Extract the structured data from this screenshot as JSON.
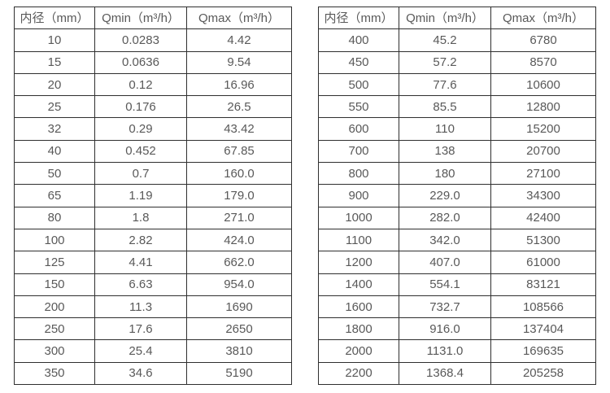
{
  "colors": {
    "background": "#ffffff",
    "border": "#2f2f2f",
    "text": "#595959"
  },
  "tables": [
    {
      "name": "flow-rate-table-small-diameters",
      "headers": [
        "内径（mm）",
        "Qmin（m³/h）",
        "Qmax（m³/h）"
      ],
      "rows": [
        [
          "10",
          "0.0283",
          "4.42"
        ],
        [
          "15",
          "0.0636",
          "9.54"
        ],
        [
          "20",
          "0.12",
          "16.96"
        ],
        [
          "25",
          "0.176",
          "26.5"
        ],
        [
          "32",
          "0.29",
          "43.42"
        ],
        [
          "40",
          "0.452",
          "67.85"
        ],
        [
          "50",
          "0.7",
          "160.0"
        ],
        [
          "65",
          "1.19",
          "179.0"
        ],
        [
          "80",
          "1.8",
          "271.0"
        ],
        [
          "100",
          "2.82",
          "424.0"
        ],
        [
          "125",
          "4.41",
          "662.0"
        ],
        [
          "150",
          "6.63",
          "954.0"
        ],
        [
          "200",
          "11.3",
          "1690"
        ],
        [
          "250",
          "17.6",
          "2650"
        ],
        [
          "300",
          "25.4",
          "3810"
        ],
        [
          "350",
          "34.6",
          "5190"
        ]
      ]
    },
    {
      "name": "flow-rate-table-large-diameters",
      "headers": [
        "内径（mm）",
        "Qmin（m³/h）",
        "Qmax（m³/h）"
      ],
      "rows": [
        [
          "400",
          "45.2",
          "6780"
        ],
        [
          "450",
          "57.2",
          "8570"
        ],
        [
          "500",
          "77.6",
          "10600"
        ],
        [
          "550",
          "85.5",
          "12800"
        ],
        [
          "600",
          "110",
          "15200"
        ],
        [
          "700",
          "138",
          "20700"
        ],
        [
          "800",
          "180",
          "27100"
        ],
        [
          "900",
          "229.0",
          "34300"
        ],
        [
          "1000",
          "282.0",
          "42400"
        ],
        [
          "1100",
          "342.0",
          "51300"
        ],
        [
          "1200",
          "407.0",
          "61000"
        ],
        [
          "1400",
          "554.1",
          "83121"
        ],
        [
          "1600",
          "732.7",
          "108566"
        ],
        [
          "1800",
          "916.0",
          "137404"
        ],
        [
          "2000",
          "1131.0",
          "169635"
        ],
        [
          "2200",
          "1368.4",
          "205258"
        ]
      ]
    }
  ]
}
